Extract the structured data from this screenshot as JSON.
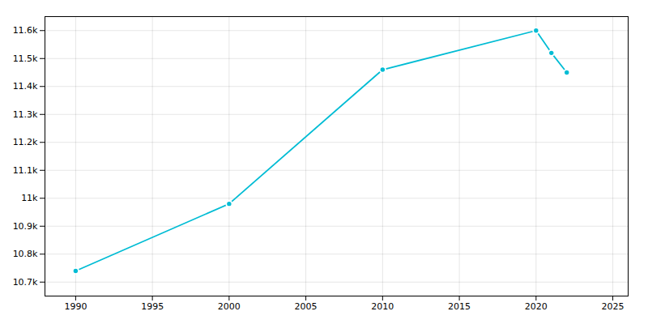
{
  "chart_data": {
    "type": "line",
    "x": [
      1990,
      2000,
      2010,
      2020,
      2021,
      2022
    ],
    "values": [
      10740,
      10980,
      11460,
      11600,
      11520,
      11450
    ],
    "color": "#00BCD4",
    "marker": "circle",
    "xlim": [
      1988,
      2026
    ],
    "xticks": [
      1990,
      1995,
      2000,
      2005,
      2010,
      2015,
      2020,
      2025
    ],
    "ylim": [
      10650,
      11650
    ],
    "yticks": [
      {
        "value": 10700,
        "label": "10.7k"
      },
      {
        "value": 10800,
        "label": "10.8k"
      },
      {
        "value": 10900,
        "label": "10.9k"
      },
      {
        "value": 11000,
        "label": "11k"
      },
      {
        "value": 11100,
        "label": "11.1k"
      },
      {
        "value": 11200,
        "label": "11.2k"
      },
      {
        "value": 11300,
        "label": "11.3k"
      },
      {
        "value": 11400,
        "label": "11.4k"
      },
      {
        "value": 11500,
        "label": "11.5k"
      },
      {
        "value": 11600,
        "label": "11.6k"
      }
    ],
    "grid": true
  }
}
